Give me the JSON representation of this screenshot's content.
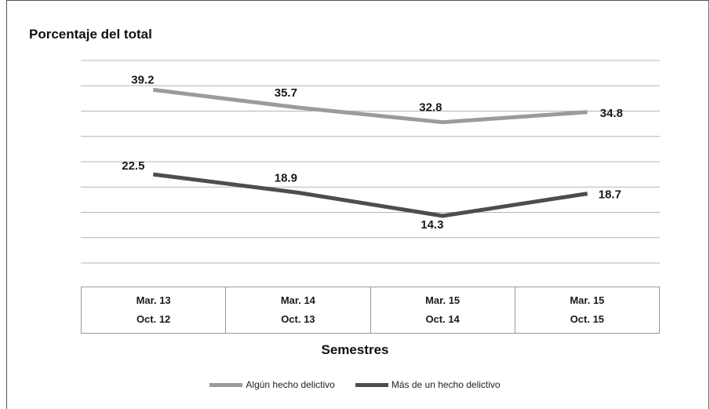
{
  "chart_data": {
    "type": "line",
    "ylabel": "Porcentaje del total",
    "xlabel": "Semestres",
    "categories": [
      [
        "Mar. 13",
        "Oct. 12"
      ],
      [
        "Mar. 14",
        "Oct. 13"
      ],
      [
        "Mar. 15",
        "Oct. 14"
      ],
      [
        "Mar. 15",
        "Oct. 15"
      ]
    ],
    "series": [
      {
        "name": "Algún hecho delictivo",
        "values": [
          39.2,
          35.7,
          32.8,
          34.8
        ],
        "color": "#9b9b9b"
      },
      {
        "name": "Más de un hecho delictivo",
        "values": [
          22.5,
          18.9,
          14.3,
          18.7
        ],
        "color": "#4d4d4d"
      }
    ],
    "ylim": [
      5,
      45
    ],
    "grid": true,
    "legend_position": "bottom"
  }
}
